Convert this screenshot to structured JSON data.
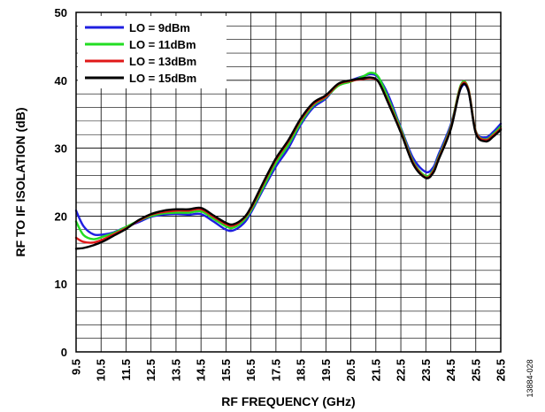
{
  "chart_data": {
    "type": "line",
    "xlabel": "RF FREQUENCY (GHz)",
    "ylabel": "RF TO IF ISOLATION (dB)",
    "xlim": [
      9.5,
      26.5
    ],
    "ylim": [
      0,
      50
    ],
    "xticks": [
      "9.5",
      "10.5",
      "11.5",
      "12.5",
      "13.5",
      "14.5",
      "15.5",
      "16.5",
      "17.5",
      "18.5",
      "19.5",
      "20.5",
      "21.5",
      "22.5",
      "23.5",
      "24.5",
      "25.5",
      "26.5"
    ],
    "yticks": [
      "0",
      "10",
      "20",
      "30",
      "40",
      "50"
    ],
    "grid": true,
    "legend_position": "top-left",
    "figure_id": "13884-028",
    "series": [
      {
        "name": "LO = 9dBm",
        "color": "#1f1fe0",
        "x": [
          9.5,
          9.8,
          10.2,
          10.6,
          11,
          11.5,
          12,
          12.5,
          13,
          13.5,
          14,
          14.5,
          15,
          15.5,
          15.8,
          16.2,
          16.5,
          17,
          17.5,
          18,
          18.5,
          19,
          19.5,
          20,
          20.5,
          21,
          21.3,
          21.6,
          22,
          22.5,
          23,
          23.5,
          23.8,
          24,
          24.5,
          24.9,
          25.2,
          25.5,
          25.9,
          26.2,
          26.5
        ],
        "y": [
          20.8,
          18.5,
          17.3,
          17.3,
          17.6,
          18.4,
          19.1,
          19.9,
          20.2,
          20.3,
          20.2,
          20.3,
          19.2,
          18.0,
          17.9,
          18.9,
          20.5,
          24.0,
          27.3,
          30.0,
          33.5,
          36.0,
          37.3,
          39.4,
          40.0,
          40.6,
          40.9,
          40.4,
          37.8,
          33.0,
          28.5,
          26.5,
          27.2,
          29.0,
          33.5,
          38.8,
          38.5,
          32.5,
          31.6,
          32.4,
          33.6
        ]
      },
      {
        "name": "LO = 11dBm",
        "color": "#22dd22",
        "x": [
          9.5,
          9.8,
          10.2,
          10.6,
          11,
          11.5,
          12,
          12.5,
          13,
          13.5,
          14,
          14.5,
          15,
          15.5,
          15.8,
          16.2,
          16.5,
          17,
          17.5,
          18,
          18.5,
          19,
          19.5,
          20,
          20.5,
          21,
          21.3,
          21.6,
          22,
          22.5,
          23,
          23.5,
          23.8,
          24,
          24.5,
          24.9,
          25.2,
          25.5,
          25.9,
          26.2,
          26.5
        ],
        "y": [
          19.2,
          17.2,
          16.6,
          17.0,
          17.5,
          18.4,
          19.3,
          20.0,
          20.4,
          20.5,
          20.5,
          20.7,
          19.6,
          18.5,
          18.3,
          19.3,
          20.8,
          24.3,
          27.8,
          30.5,
          33.8,
          36.3,
          37.5,
          39.2,
          39.8,
          40.6,
          41.1,
          40.5,
          37.3,
          32.8,
          28.0,
          25.9,
          26.8,
          28.6,
          33.2,
          39.3,
          38.8,
          32.5,
          31.3,
          32.1,
          33.2
        ]
      },
      {
        "name": "LO = 13dBm",
        "color": "#e01818",
        "x": [
          9.5,
          9.8,
          10.2,
          10.6,
          11,
          11.5,
          12,
          12.5,
          13,
          13.5,
          14,
          14.5,
          15,
          15.5,
          15.8,
          16.2,
          16.5,
          17,
          17.5,
          18,
          18.5,
          19,
          19.5,
          20,
          20.5,
          21,
          21.3,
          21.6,
          22,
          22.5,
          23,
          23.5,
          23.8,
          24,
          24.5,
          24.9,
          25.2,
          25.5,
          25.9,
          26.2,
          26.5
        ],
        "y": [
          16.8,
          16.2,
          16.1,
          16.6,
          17.3,
          18.2,
          19.3,
          20.2,
          20.6,
          20.8,
          20.8,
          21.0,
          19.9,
          18.8,
          18.6,
          19.6,
          21.1,
          24.8,
          28.3,
          31.0,
          34.2,
          36.5,
          37.6,
          39.4,
          39.9,
          40.2,
          40.3,
          39.8,
          36.8,
          32.5,
          27.8,
          25.7,
          26.6,
          28.4,
          33.0,
          39.1,
          38.7,
          32.4,
          31.2,
          31.9,
          32.9
        ]
      },
      {
        "name": "LO = 15dBm",
        "color": "#000000",
        "x": [
          9.5,
          9.8,
          10.2,
          10.6,
          11,
          11.5,
          12,
          12.5,
          13,
          13.5,
          14,
          14.5,
          15,
          15.5,
          15.8,
          16.2,
          16.5,
          17,
          17.5,
          18,
          18.5,
          19,
          19.5,
          20,
          20.5,
          21,
          21.3,
          21.6,
          22,
          22.5,
          23,
          23.5,
          23.8,
          24,
          24.5,
          24.9,
          25.2,
          25.5,
          25.9,
          26.2,
          26.5
        ],
        "y": [
          15.2,
          15.3,
          15.7,
          16.3,
          17.1,
          18.1,
          19.4,
          20.3,
          20.8,
          21.0,
          21.0,
          21.2,
          20.1,
          19.0,
          18.8,
          19.7,
          21.3,
          25.0,
          28.5,
          31.2,
          34.4,
          36.7,
          37.8,
          39.5,
          40.0,
          40.3,
          40.4,
          39.8,
          36.6,
          32.3,
          27.6,
          25.6,
          26.4,
          28.2,
          32.8,
          38.9,
          38.5,
          32.2,
          31.0,
          31.7,
          32.7
        ]
      }
    ]
  }
}
